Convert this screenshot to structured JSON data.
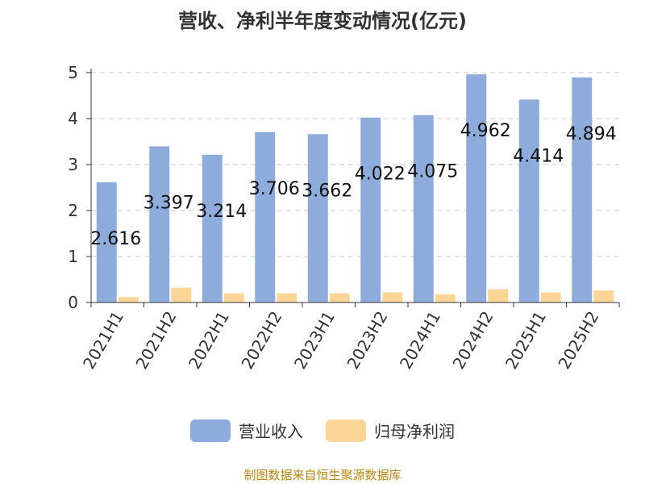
{
  "chart_data": {
    "type": "bar",
    "title": "营收、净利半年度变动情况(亿元)",
    "categories": [
      "2021H1",
      "2021H2",
      "2022H1",
      "2022H2",
      "2023H1",
      "2023H2",
      "2024H1",
      "2024H2",
      "2025H1",
      "2025H2"
    ],
    "series": [
      {
        "name": "营业收入",
        "color": "#8eacdb",
        "values": [
          2.616,
          3.397,
          3.214,
          3.706,
          3.662,
          4.022,
          4.075,
          4.962,
          4.414,
          4.894
        ],
        "labels": [
          "2.616",
          "3.397",
          "3.214",
          "3.706",
          "3.662",
          "4.022",
          "4.075",
          "4.962",
          "4.414",
          "4.894"
        ]
      },
      {
        "name": "归母净利润",
        "color": "#fdd597",
        "values": [
          0.12,
          0.32,
          0.2,
          0.2,
          0.2,
          0.22,
          0.18,
          0.29,
          0.22,
          0.26
        ]
      }
    ],
    "ylim": [
      0,
      5
    ],
    "yticks": [
      "0",
      "1",
      "2",
      "3",
      "4",
      "5"
    ],
    "grid": true,
    "legend_position": "bottom"
  },
  "source_note": "制图数据来自恒生聚源数据库"
}
